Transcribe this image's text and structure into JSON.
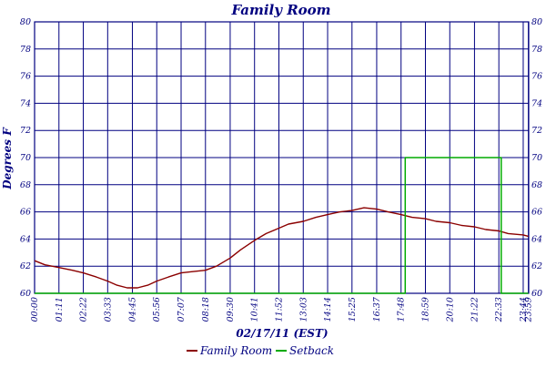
{
  "chart_data": {
    "type": "line",
    "title": "Family Room",
    "xlabel": "02/17/11 (EST)",
    "ylabel": "Degrees F",
    "ylim": [
      60,
      80
    ],
    "yticks": [
      60,
      62,
      64,
      66,
      68,
      70,
      72,
      74,
      76,
      78,
      80
    ],
    "xlim_minutes": [
      0,
      1440
    ],
    "xticks": [
      "00:00",
      "01:11",
      "02:22",
      "03:33",
      "04:45",
      "05:56",
      "07:07",
      "08:18",
      "09:30",
      "10:41",
      "11:52",
      "13:03",
      "14:14",
      "15:25",
      "16:37",
      "17:48",
      "18:59",
      "20:10",
      "21:22",
      "22:33",
      "23:44",
      "23:59"
    ],
    "grid": true,
    "legend_position": "bottom",
    "colors": {
      "axes": "#000080",
      "plot_bg": "#ffffff"
    },
    "series": [
      {
        "name": "Family Room",
        "color": "#8b0000",
        "points": [
          [
            "00:00",
            62.4
          ],
          [
            "00:30",
            62.1
          ],
          [
            "01:11",
            61.9
          ],
          [
            "01:50",
            61.7
          ],
          [
            "02:22",
            61.5
          ],
          [
            "03:00",
            61.2
          ],
          [
            "03:33",
            60.9
          ],
          [
            "04:00",
            60.6
          ],
          [
            "04:30",
            60.4
          ],
          [
            "05:00",
            60.4
          ],
          [
            "05:30",
            60.6
          ],
          [
            "05:56",
            60.9
          ],
          [
            "06:30",
            61.2
          ],
          [
            "07:07",
            61.5
          ],
          [
            "07:40",
            61.6
          ],
          [
            "08:18",
            61.7
          ],
          [
            "08:50",
            62.0
          ],
          [
            "09:30",
            62.6
          ],
          [
            "10:00",
            63.2
          ],
          [
            "10:41",
            63.9
          ],
          [
            "11:15",
            64.4
          ],
          [
            "11:52",
            64.8
          ],
          [
            "12:20",
            65.1
          ],
          [
            "13:03",
            65.3
          ],
          [
            "13:40",
            65.6
          ],
          [
            "14:14",
            65.8
          ],
          [
            "14:50",
            66.0
          ],
          [
            "15:25",
            66.1
          ],
          [
            "16:00",
            66.3
          ],
          [
            "16:37",
            66.2
          ],
          [
            "17:10",
            66.0
          ],
          [
            "17:48",
            65.8
          ],
          [
            "18:20",
            65.6
          ],
          [
            "18:59",
            65.5
          ],
          [
            "19:30",
            65.3
          ],
          [
            "20:10",
            65.2
          ],
          [
            "20:45",
            65.0
          ],
          [
            "21:22",
            64.9
          ],
          [
            "21:55",
            64.7
          ],
          [
            "22:33",
            64.6
          ],
          [
            "23:00",
            64.4
          ],
          [
            "23:44",
            64.3
          ],
          [
            "23:59",
            64.2
          ]
        ]
      },
      {
        "name": "Setback",
        "color": "#00aa00",
        "points": [
          [
            "00:00",
            60
          ],
          [
            "18:00",
            60
          ],
          [
            "18:00",
            70
          ],
          [
            "22:40",
            70
          ],
          [
            "22:40",
            60
          ],
          [
            "23:59",
            60
          ]
        ]
      }
    ]
  }
}
